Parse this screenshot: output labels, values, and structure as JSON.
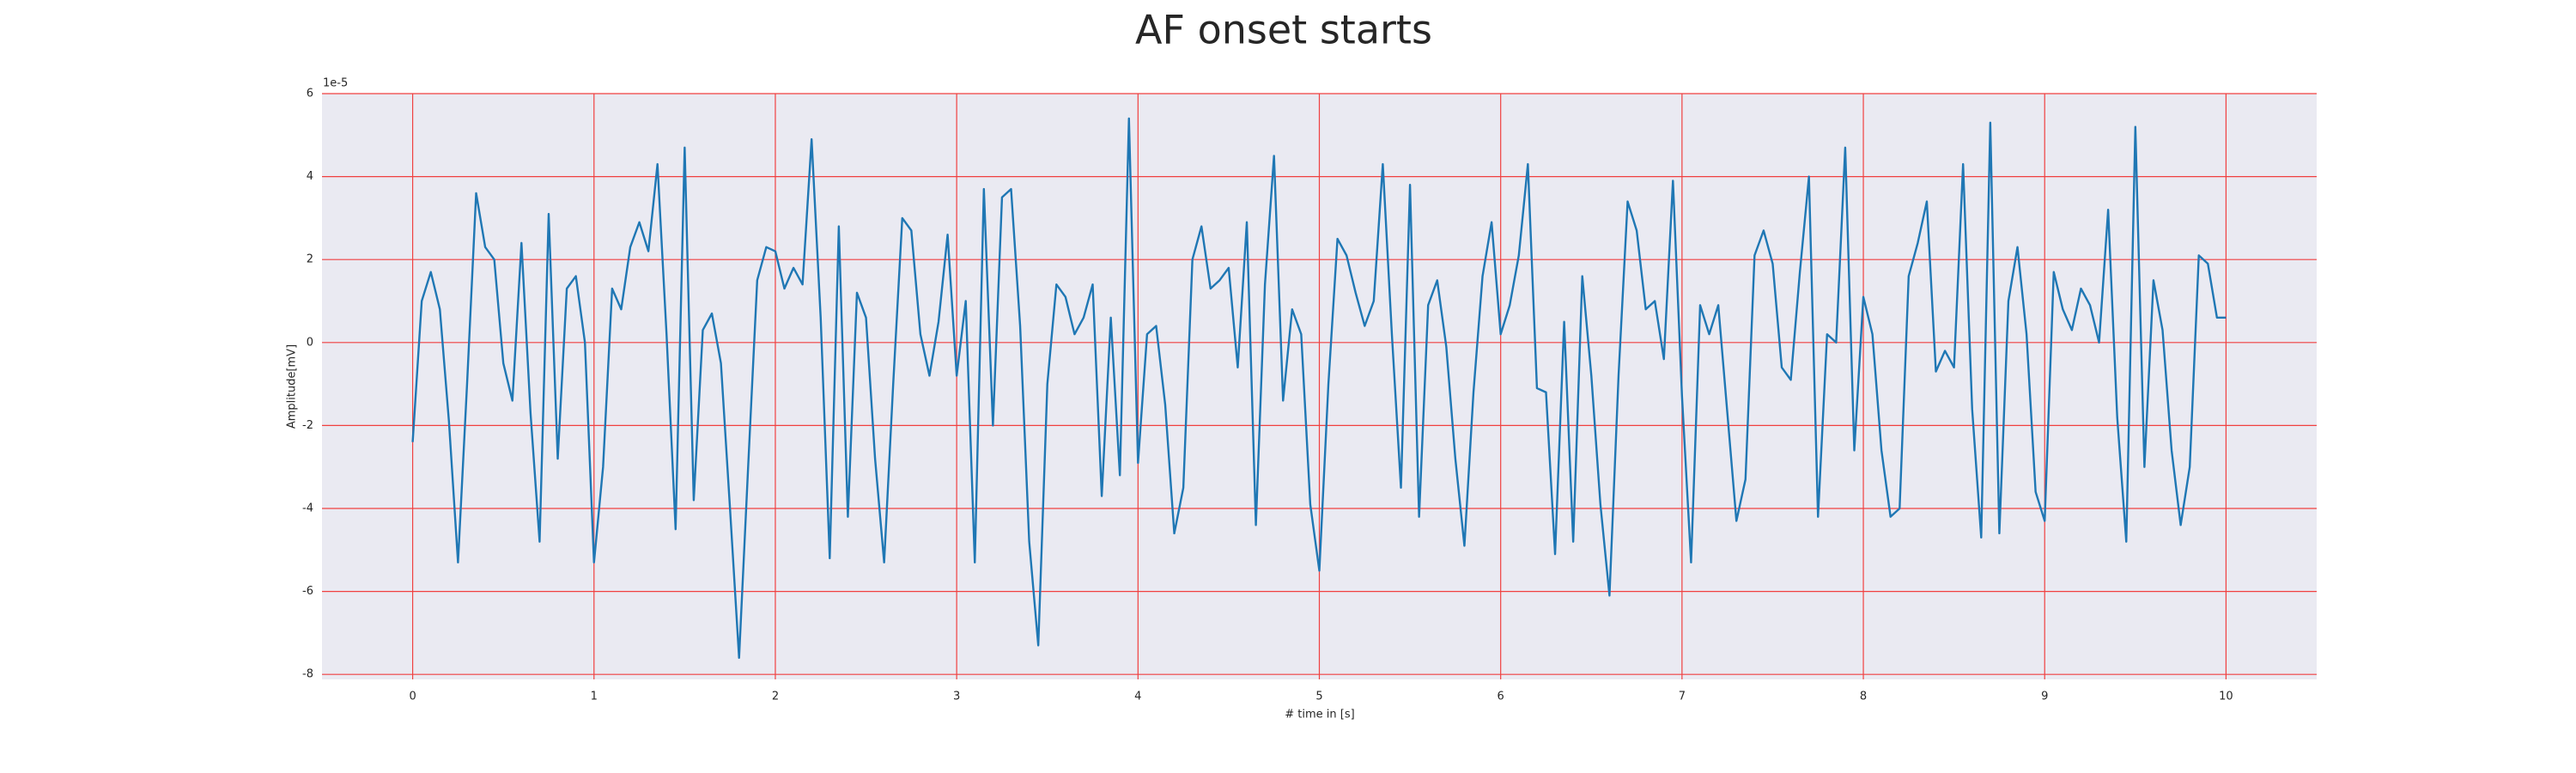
{
  "chart_data": {
    "type": "line",
    "title": "AF onset starts",
    "x_label": "# time in [s]",
    "y_label": "Amplitude[mV]",
    "y_offset_label": "1e-5",
    "x": [
      0,
      0.05,
      0.1,
      0.15,
      0.2,
      0.25,
      0.3,
      0.35,
      0.4,
      0.45,
      0.5,
      0.55,
      0.6,
      0.65,
      0.7,
      0.75,
      0.8,
      0.85,
      0.9,
      0.95,
      1,
      1.05,
      1.1,
      1.15,
      1.2,
      1.25,
      1.3,
      1.35,
      1.4,
      1.45,
      1.5,
      1.55,
      1.6,
      1.65,
      1.7,
      1.75,
      1.8,
      1.85,
      1.9,
      1.95,
      2,
      2.05,
      2.1,
      2.15,
      2.2,
      2.25,
      2.3,
      2.35,
      2.4,
      2.45,
      2.5,
      2.55,
      2.6,
      2.65,
      2.7,
      2.75,
      2.8,
      2.85,
      2.9,
      2.95,
      3,
      3.05,
      3.1,
      3.15,
      3.2,
      3.25,
      3.3,
      3.35,
      3.4,
      3.45,
      3.5,
      3.55,
      3.6,
      3.65,
      3.7,
      3.75,
      3.8,
      3.85,
      3.9,
      3.95,
      4,
      4.05,
      4.1,
      4.15,
      4.2,
      4.25,
      4.3,
      4.35,
      4.4,
      4.45,
      4.5,
      4.55,
      4.6,
      4.65,
      4.7,
      4.75,
      4.8,
      4.85,
      4.9,
      4.95,
      5,
      5.05,
      5.1,
      5.15,
      5.2,
      5.25,
      5.3,
      5.35,
      5.4,
      5.45,
      5.5,
      5.55,
      5.6,
      5.65,
      5.7,
      5.75,
      5.8,
      5.85,
      5.9,
      5.95,
      6,
      6.05,
      6.1,
      6.15,
      6.2,
      6.25,
      6.3,
      6.35,
      6.4,
      6.45,
      6.5,
      6.55,
      6.6,
      6.65,
      6.7,
      6.75,
      6.8,
      6.85,
      6.9,
      6.95,
      7,
      7.05,
      7.1,
      7.15,
      7.2,
      7.25,
      7.3,
      7.35,
      7.4,
      7.45,
      7.5,
      7.55,
      7.6,
      7.65,
      7.7,
      7.75,
      7.8,
      7.85,
      7.9,
      7.95,
      8,
      8.05,
      8.1,
      8.15,
      8.2,
      8.25,
      8.3,
      8.35,
      8.4,
      8.45,
      8.5,
      8.55,
      8.6,
      8.65,
      8.7,
      8.75,
      8.8,
      8.85,
      8.9,
      8.95,
      9,
      9.05,
      9.1,
      9.15,
      9.2,
      9.25,
      9.3,
      9.35,
      9.4,
      9.45,
      9.5,
      9.55,
      9.6,
      9.65,
      9.7,
      9.75,
      9.8,
      9.85,
      9.9,
      9.95,
      10
    ],
    "series": [
      {
        "color": "#1f77b4",
        "values": [
          -2.4,
          1.0,
          1.7,
          0.8,
          -1.9,
          -5.3,
          -1.0,
          3.6,
          2.3,
          2.0,
          -0.5,
          -1.4,
          2.4,
          -1.7,
          -4.8,
          3.1,
          -2.8,
          1.3,
          1.6,
          0.0,
          -5.3,
          -3.0,
          1.3,
          0.8,
          2.3,
          2.9,
          2.2,
          4.3,
          0.2,
          -4.5,
          4.7,
          -3.8,
          0.3,
          0.7,
          -0.5,
          -4.0,
          -7.6,
          -3.0,
          1.5,
          2.3,
          2.2,
          1.3,
          1.8,
          1.4,
          4.9,
          0.6,
          -5.2,
          2.8,
          -4.2,
          1.2,
          0.6,
          -2.8,
          -5.3,
          -1.0,
          3.0,
          2.7,
          0.2,
          -0.8,
          0.5,
          2.6,
          -0.8,
          1.0,
          -5.3,
          3.7,
          -2.0,
          3.5,
          3.7,
          0.4,
          -4.8,
          -7.3,
          -1.0,
          1.4,
          1.1,
          0.2,
          0.6,
          1.4,
          -3.7,
          0.6,
          -3.2,
          5.4,
          -2.9,
          0.2,
          0.4,
          -1.5,
          -4.6,
          -3.5,
          2.0,
          2.8,
          1.3,
          1.5,
          1.8,
          -0.6,
          2.9,
          -4.4,
          1.4,
          4.5,
          -1.4,
          0.8,
          0.2,
          -3.9,
          -5.5,
          -1.0,
          2.5,
          2.1,
          1.2,
          0.4,
          1.0,
          4.3,
          0.2,
          -3.5,
          3.8,
          -4.2,
          0.9,
          1.5,
          -0.1,
          -2.8,
          -4.9,
          -1.2,
          1.6,
          2.9,
          0.2,
          0.9,
          2.1,
          4.3,
          -1.1,
          -1.2,
          -5.1,
          0.5,
          -4.8,
          1.6,
          -0.8,
          -3.9,
          -6.1,
          -0.8,
          3.4,
          2.7,
          0.8,
          1.0,
          -0.4,
          3.9,
          -1.3,
          -5.3,
          0.9,
          0.2,
          0.9,
          -1.7,
          -4.3,
          -3.3,
          2.1,
          2.7,
          1.9,
          -0.6,
          -0.9,
          1.7,
          4.0,
          -4.2,
          0.2,
          0.0,
          4.7,
          -2.6,
          1.1,
          0.2,
          -2.6,
          -4.2,
          -4.0,
          1.6,
          2.4,
          3.4,
          -0.7,
          -0.2,
          -0.6,
          4.3,
          -1.6,
          -4.7,
          5.3,
          -4.6,
          1.0,
          2.3,
          0.2,
          -3.6,
          -4.3,
          1.7,
          0.8,
          0.3,
          1.3,
          0.9,
          0.0,
          3.2,
          -1.8,
          -4.8,
          5.2,
          -3.0,
          1.5,
          0.3,
          -2.6,
          -4.4,
          -3.0,
          2.1,
          1.9,
          0.6,
          0.6
        ]
      }
    ],
    "xlim": [
      -0.5,
      10.5
    ],
    "ylim": [
      -8.12,
      6.0
    ],
    "xticks": [
      0,
      1,
      2,
      3,
      4,
      5,
      6,
      7,
      8,
      9,
      10
    ],
    "yticks": [
      -8,
      -6,
      -4,
      -2,
      0,
      2,
      4,
      6
    ],
    "grid": true,
    "grid_color": "#f04040",
    "background": "#eaeaf2"
  }
}
